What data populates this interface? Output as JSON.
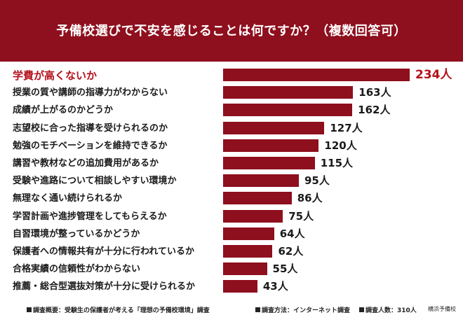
{
  "header": {
    "title": "予備校選びで不安を感じることは何ですか？（複数回答可）"
  },
  "chart_data": {
    "type": "bar",
    "orientation": "horizontal",
    "title": "予備校選びで不安を感じることは何ですか？（複数回答可）",
    "unit": "人",
    "categories": [
      "学費が高くないか",
      "授業の質や講師の指導力がわからない",
      "成績が上がるのかどうか",
      "志望校に合った指導を受けられるのか",
      "勉強のモチベーションを維持できるか",
      "講習や教材などの追加費用があるか",
      "受験や進路について相談しやすい環境か",
      "無理なく通い続けられるか",
      "学習計画や進捗管理をしてもらえるか",
      "自習環境が整っているかどうか",
      "保護者への情報共有が十分に行われているか",
      "合格実績の信頼性がわからない",
      "推薦・総合型選抜対策が十分に受けられるか"
    ],
    "values": [
      234,
      163,
      162,
      127,
      120,
      115,
      95,
      86,
      75,
      64,
      62,
      55,
      43
    ],
    "value_labels": [
      "234人",
      "163人",
      "162人",
      "127人",
      "120人",
      "115人",
      "95人",
      "86人",
      "75人",
      "64人",
      "62人",
      "55人",
      "43人"
    ],
    "highlight_index": 0,
    "bar_color": "#8e0f1d",
    "highlight_color": "#b4111c",
    "xlim": [
      0,
      234
    ],
    "grid": false
  },
  "footer": {
    "survey_overview": "調査概要：受験生の保護者が考える「理想の予備校環境」調査",
    "method": "調査方法：インターネット調査",
    "respondents": "調査人数：310人",
    "credit": "横浜予備校"
  }
}
